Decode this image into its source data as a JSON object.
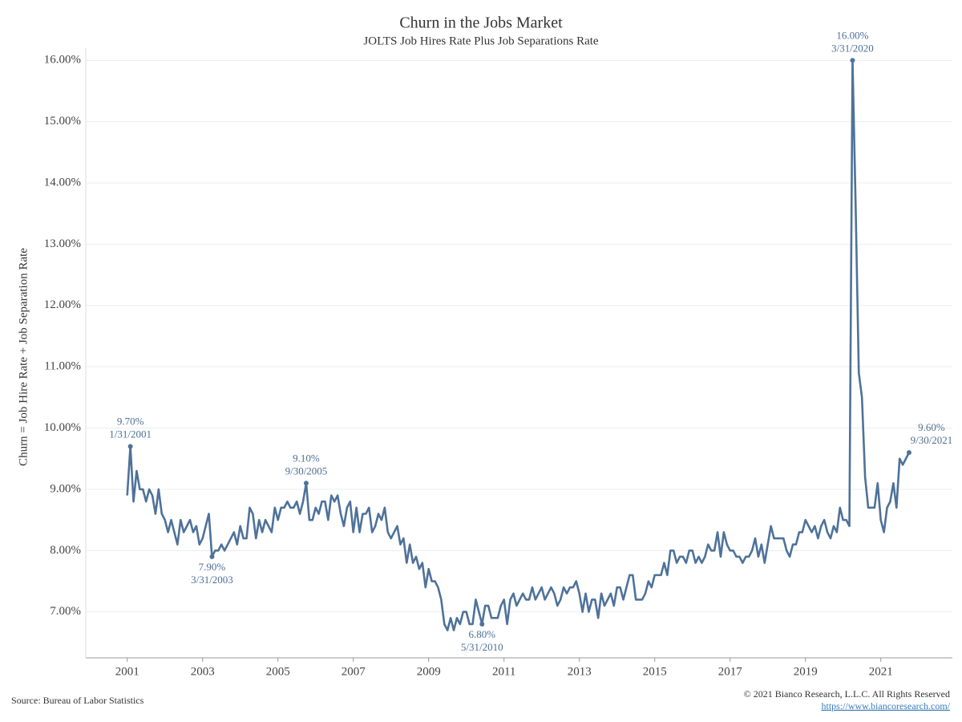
{
  "chart_data": {
    "type": "line",
    "title": "Churn in the Jobs Market",
    "subtitle": "JOLTS Job Hires Rate Plus Job Separations Rate",
    "y_label": "Churn = Job Hire Rate + Job Separation Rate",
    "source": "Source: Bureau of Labor Statistics",
    "copyright": "© 2021 Bianco Research, L.L.C. All Rights Reserved",
    "url": "https://www.biancoresearch.com/",
    "xlim": [
      1999.9,
      2022.9
    ],
    "xticks": [
      2001,
      2003,
      2005,
      2007,
      2009,
      2011,
      2013,
      2015,
      2017,
      2019,
      2021
    ],
    "ylim": [
      6.25,
      16.2
    ],
    "yticks": [
      {
        "value": 7,
        "label": "7.00%"
      },
      {
        "value": 8,
        "label": "8.00%"
      },
      {
        "value": 9,
        "label": "9.00%"
      },
      {
        "value": 10,
        "label": "10.00%"
      },
      {
        "value": 11,
        "label": "11.00%"
      },
      {
        "value": 12,
        "label": "12.00%"
      },
      {
        "value": 13,
        "label": "13.00%"
      },
      {
        "value": 14,
        "label": "14.00%"
      },
      {
        "value": 15,
        "label": "15.00%"
      },
      {
        "value": 16,
        "label": "16.00%"
      }
    ],
    "grid": true,
    "x": [
      "2000-12",
      "2001-01",
      "2001-02",
      "2001-03",
      "2001-04",
      "2001-05",
      "2001-06",
      "2001-07",
      "2001-08",
      "2001-09",
      "2001-10",
      "2001-11",
      "2001-12",
      "2002-01",
      "2002-02",
      "2002-03",
      "2002-04",
      "2002-05",
      "2002-06",
      "2002-07",
      "2002-08",
      "2002-09",
      "2002-10",
      "2002-11",
      "2002-12",
      "2003-01",
      "2003-02",
      "2003-03",
      "2003-04",
      "2003-05",
      "2003-06",
      "2003-07",
      "2003-08",
      "2003-09",
      "2003-10",
      "2003-11",
      "2003-12",
      "2004-01",
      "2004-02",
      "2004-03",
      "2004-04",
      "2004-05",
      "2004-06",
      "2004-07",
      "2004-08",
      "2004-09",
      "2004-10",
      "2004-11",
      "2004-12",
      "2005-01",
      "2005-02",
      "2005-03",
      "2005-04",
      "2005-05",
      "2005-06",
      "2005-07",
      "2005-08",
      "2005-09",
      "2005-10",
      "2005-11",
      "2005-12",
      "2006-01",
      "2006-02",
      "2006-03",
      "2006-04",
      "2006-05",
      "2006-06",
      "2006-07",
      "2006-08",
      "2006-09",
      "2006-10",
      "2006-11",
      "2006-12",
      "2007-01",
      "2007-02",
      "2007-03",
      "2007-04",
      "2007-05",
      "2007-06",
      "2007-07",
      "2007-08",
      "2007-09",
      "2007-10",
      "2007-11",
      "2007-12",
      "2008-01",
      "2008-02",
      "2008-03",
      "2008-04",
      "2008-05",
      "2008-06",
      "2008-07",
      "2008-08",
      "2008-09",
      "2008-10",
      "2008-11",
      "2008-12",
      "2009-01",
      "2009-02",
      "2009-03",
      "2009-04",
      "2009-05",
      "2009-06",
      "2009-07",
      "2009-08",
      "2009-09",
      "2009-10",
      "2009-11",
      "2009-12",
      "2010-01",
      "2010-02",
      "2010-03",
      "2010-04",
      "2010-05",
      "2010-06",
      "2010-07",
      "2010-08",
      "2010-09",
      "2010-10",
      "2010-11",
      "2010-12",
      "2011-01",
      "2011-02",
      "2011-03",
      "2011-04",
      "2011-05",
      "2011-06",
      "2011-07",
      "2011-08",
      "2011-09",
      "2011-10",
      "2011-11",
      "2011-12",
      "2012-01",
      "2012-02",
      "2012-03",
      "2012-04",
      "2012-05",
      "2012-06",
      "2012-07",
      "2012-08",
      "2012-09",
      "2012-10",
      "2012-11",
      "2012-12",
      "2013-01",
      "2013-02",
      "2013-03",
      "2013-04",
      "2013-05",
      "2013-06",
      "2013-07",
      "2013-08",
      "2013-09",
      "2013-10",
      "2013-11",
      "2013-12",
      "2014-01",
      "2014-02",
      "2014-03",
      "2014-04",
      "2014-05",
      "2014-06",
      "2014-07",
      "2014-08",
      "2014-09",
      "2014-10",
      "2014-11",
      "2014-12",
      "2015-01",
      "2015-02",
      "2015-03",
      "2015-04",
      "2015-05",
      "2015-06",
      "2015-07",
      "2015-08",
      "2015-09",
      "2015-10",
      "2015-11",
      "2015-12",
      "2016-01",
      "2016-02",
      "2016-03",
      "2016-04",
      "2016-05",
      "2016-06",
      "2016-07",
      "2016-08",
      "2016-09",
      "2016-10",
      "2016-11",
      "2016-12",
      "2017-01",
      "2017-02",
      "2017-03",
      "2017-04",
      "2017-05",
      "2017-06",
      "2017-07",
      "2017-08",
      "2017-09",
      "2017-10",
      "2017-11",
      "2017-12",
      "2018-01",
      "2018-02",
      "2018-03",
      "2018-04",
      "2018-05",
      "2018-06",
      "2018-07",
      "2018-08",
      "2018-09",
      "2018-10",
      "2018-11",
      "2018-12",
      "2019-01",
      "2019-02",
      "2019-03",
      "2019-04",
      "2019-05",
      "2019-06",
      "2019-07",
      "2019-08",
      "2019-09",
      "2019-10",
      "2019-11",
      "2019-12",
      "2020-01",
      "2020-02",
      "2020-03",
      "2020-04",
      "2020-05",
      "2020-06",
      "2020-07",
      "2020-08",
      "2020-09",
      "2020-10",
      "2020-11",
      "2020-12",
      "2021-01",
      "2021-02",
      "2021-03",
      "2021-04",
      "2021-05",
      "2021-06",
      "2021-07",
      "2021-08",
      "2021-09"
    ],
    "series": [
      {
        "name": "Churn",
        "color": "#4e729a",
        "values": [
          8.9,
          9.7,
          8.8,
          9.3,
          9.0,
          9.0,
          8.8,
          9.0,
          8.9,
          8.6,
          9.0,
          8.6,
          8.5,
          8.3,
          8.5,
          8.3,
          8.1,
          8.5,
          8.3,
          8.4,
          8.5,
          8.3,
          8.4,
          8.1,
          8.2,
          8.4,
          8.6,
          7.9,
          8.0,
          8.0,
          8.1,
          8.0,
          8.1,
          8.2,
          8.3,
          8.1,
          8.4,
          8.2,
          8.2,
          8.7,
          8.6,
          8.2,
          8.5,
          8.3,
          8.5,
          8.4,
          8.3,
          8.7,
          8.5,
          8.7,
          8.7,
          8.8,
          8.7,
          8.7,
          8.8,
          8.6,
          8.8,
          9.1,
          8.5,
          8.5,
          8.7,
          8.6,
          8.8,
          8.8,
          8.5,
          8.9,
          8.8,
          8.9,
          8.6,
          8.4,
          8.7,
          8.8,
          8.3,
          8.7,
          8.3,
          8.6,
          8.6,
          8.7,
          8.3,
          8.4,
          8.6,
          8.5,
          8.7,
          8.3,
          8.2,
          8.3,
          8.4,
          8.1,
          8.2,
          7.8,
          8.1,
          7.8,
          7.9,
          7.7,
          7.8,
          7.4,
          7.7,
          7.5,
          7.5,
          7.4,
          7.2,
          6.8,
          6.7,
          6.9,
          6.7,
          6.9,
          6.8,
          7.0,
          7.0,
          6.8,
          6.8,
          7.2,
          7.0,
          6.8,
          7.1,
          7.1,
          6.9,
          6.9,
          6.9,
          7.1,
          7.2,
          6.8,
          7.2,
          7.3,
          7.1,
          7.2,
          7.3,
          7.2,
          7.2,
          7.4,
          7.2,
          7.3,
          7.4,
          7.2,
          7.3,
          7.4,
          7.3,
          7.1,
          7.2,
          7.4,
          7.3,
          7.4,
          7.4,
          7.5,
          7.3,
          7.0,
          7.3,
          7.0,
          7.2,
          7.2,
          6.9,
          7.3,
          7.1,
          7.2,
          7.3,
          7.1,
          7.4,
          7.4,
          7.2,
          7.4,
          7.6,
          7.6,
          7.2,
          7.2,
          7.2,
          7.3,
          7.5,
          7.4,
          7.6,
          7.6,
          7.6,
          7.8,
          7.6,
          8.0,
          8.0,
          7.8,
          7.9,
          7.9,
          7.8,
          8.0,
          8.0,
          7.8,
          7.9,
          7.8,
          7.9,
          8.1,
          8.0,
          8.0,
          8.3,
          7.9,
          8.3,
          8.1,
          8.0,
          8.0,
          7.9,
          7.9,
          7.8,
          7.9,
          7.9,
          8.0,
          8.2,
          7.9,
          8.1,
          7.8,
          8.1,
          8.4,
          8.2,
          8.2,
          8.2,
          8.2,
          8.0,
          7.9,
          8.1,
          8.1,
          8.3,
          8.3,
          8.5,
          8.4,
          8.3,
          8.4,
          8.2,
          8.4,
          8.5,
          8.3,
          8.2,
          8.4,
          8.3,
          8.7,
          8.5,
          8.5,
          8.4,
          16.0,
          13.6,
          10.9,
          10.5,
          9.2,
          8.7,
          8.7,
          8.7,
          9.1,
          8.5,
          8.3,
          8.7,
          8.8,
          9.1,
          8.7,
          9.5,
          9.4,
          9.5,
          9.6
        ]
      }
    ],
    "annotations": [
      {
        "label": "9.70%",
        "date": "1/31/2001"
      },
      {
        "label": "7.90%",
        "date": "3/31/2003"
      },
      {
        "label": "9.10%",
        "date": "9/30/2005"
      },
      {
        "label": "6.80%",
        "date": "5/31/2010"
      },
      {
        "label": "16.00%",
        "date": "3/31/2020"
      },
      {
        "label": "9.60%",
        "date": "9/30/2021"
      }
    ]
  }
}
